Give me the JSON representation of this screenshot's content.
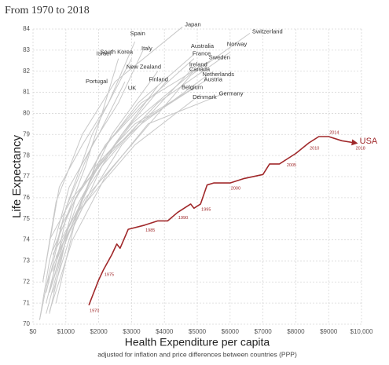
{
  "chart_data": {
    "type": "line",
    "title": "From 1970 to 2018",
    "y_label": "Life Expectancy",
    "x_label": "Health Expenditure per capita",
    "x_sublabel": "adjusted for inflation and price differences between countries (PPP)",
    "xlim": [
      0,
      10000
    ],
    "ylim": [
      70,
      84
    ],
    "xticks": [
      {
        "value": 0,
        "label": "$0"
      },
      {
        "value": 1000,
        "label": "$1000"
      },
      {
        "value": 2000,
        "label": "$2000"
      },
      {
        "value": 3000,
        "label": "$3000"
      },
      {
        "value": 4000,
        "label": "$4000"
      },
      {
        "value": 5000,
        "label": "$5000"
      },
      {
        "value": 6000,
        "label": "$6000"
      },
      {
        "value": 7000,
        "label": "$7000"
      },
      {
        "value": 8000,
        "label": "$8000"
      },
      {
        "value": 9000,
        "label": "$9000"
      },
      {
        "value": 10000,
        "label": "$10,000"
      }
    ],
    "yticks": [
      70,
      71,
      72,
      73,
      74,
      75,
      76,
      77,
      78,
      79,
      80,
      81,
      82,
      83,
      84
    ],
    "grid": true,
    "series": [
      {
        "name": "Japan",
        "color": "#c8c8c8",
        "x": [
          300,
          700,
          1500,
          2500,
          4550
        ],
        "values": [
          72.0,
          75.8,
          79.0,
          81.5,
          84.1
        ]
      },
      {
        "name": "Switzerland",
        "color": "#c8c8c8",
        "x": [
          700,
          1600,
          3000,
          4800,
          6600
        ],
        "values": [
          73.2,
          76.0,
          78.5,
          81.8,
          83.8
        ]
      },
      {
        "name": "Spain",
        "color": "#c8c8c8",
        "x": [
          300,
          800,
          1500,
          2300,
          3100
        ],
        "values": [
          72.0,
          76.5,
          78.5,
          80.5,
          83.4
        ]
      },
      {
        "name": "Italy",
        "color": "#c8c8c8",
        "x": [
          400,
          1000,
          1800,
          2600,
          3350
        ],
        "values": [
          71.5,
          75.5,
          78.5,
          80.5,
          83.0
        ]
      },
      {
        "name": "Israel",
        "color": "#c8c8c8",
        "x": [
          500,
          1000,
          1600,
          2100,
          2600
        ],
        "values": [
          71.5,
          75.0,
          77.5,
          80.0,
          82.6
        ]
      },
      {
        "name": "South Korea",
        "color": "#c8c8c8",
        "x": [
          200,
          500,
          1000,
          1800,
          3000
        ],
        "values": [
          70.2,
          72.5,
          75.5,
          79.0,
          82.6
        ]
      },
      {
        "name": "Australia",
        "color": "#c8c8c8",
        "x": [
          700,
          1300,
          2000,
          3200,
          4900
        ],
        "values": [
          71.0,
          75.0,
          78.0,
          80.5,
          82.8
        ]
      },
      {
        "name": "France",
        "color": "#c8c8c8",
        "x": [
          600,
          1300,
          2200,
          3400,
          4900
        ],
        "values": [
          72.0,
          76.0,
          78.5,
          80.5,
          82.6
        ]
      },
      {
        "name": "Norway",
        "color": "#c8c8c8",
        "x": [
          500,
          1200,
          2300,
          3800,
          6000
        ],
        "values": [
          74.0,
          76.0,
          78.0,
          80.5,
          82.9
        ]
      },
      {
        "name": "Sweden",
        "color": "#c8c8c8",
        "x": [
          800,
          1500,
          2200,
          3300,
          5400
        ],
        "values": [
          74.5,
          76.5,
          78.5,
          80.5,
          82.5
        ]
      },
      {
        "name": "Ireland",
        "color": "#c8c8c8",
        "x": [
          400,
          800,
          1500,
          2700,
          4900
        ],
        "values": [
          71.0,
          73.5,
          75.5,
          78.5,
          82.2
        ]
      },
      {
        "name": "Canada",
        "color": "#c8c8c8",
        "x": [
          600,
          1300,
          2000,
          3000,
          4900
        ],
        "values": [
          72.5,
          75.5,
          77.5,
          79.5,
          82.0
        ]
      },
      {
        "name": "New Zealand",
        "color": "#c8c8c8",
        "x": [
          500,
          900,
          1500,
          2400,
          3800
        ],
        "values": [
          71.5,
          73.5,
          76.0,
          79.0,
          82.0
        ]
      },
      {
        "name": "Netherlands",
        "color": "#c8c8c8",
        "x": [
          600,
          1300,
          2200,
          3300,
          5300
        ],
        "values": [
          73.5,
          76.0,
          78.0,
          79.5,
          81.8
        ]
      },
      {
        "name": "Finland",
        "color": "#c8c8c8",
        "x": [
          400,
          1000,
          1800,
          2700,
          4100
        ],
        "values": [
          70.5,
          74.0,
          77.0,
          79.0,
          81.6
        ]
      },
      {
        "name": "Austria",
        "color": "#c8c8c8",
        "x": [
          500,
          1000,
          1900,
          3100,
          5300
        ],
        "values": [
          70.5,
          74.0,
          77.5,
          79.5,
          81.6
        ]
      },
      {
        "name": "Portugal",
        "color": "#c8c8c8",
        "x": [
          200,
          500,
          1100,
          2000,
          2800
        ],
        "values": [
          70.2,
          73.0,
          76.5,
          79.0,
          81.5
        ]
      },
      {
        "name": "Belgium",
        "color": "#c8c8c8",
        "x": [
          600,
          1200,
          2100,
          3200,
          5000
        ],
        "values": [
          71.5,
          74.5,
          77.5,
          79.5,
          81.3
        ]
      },
      {
        "name": "UK",
        "color": "#c8c8c8",
        "x": [
          400,
          900,
          1700,
          2700,
          3800
        ],
        "values": [
          71.8,
          74.0,
          76.5,
          79.0,
          81.3
        ]
      },
      {
        "name": "Germany",
        "color": "#c8c8c8",
        "x": [
          500,
          1200,
          2200,
          3500,
          5900
        ],
        "values": [
          70.6,
          74.0,
          77.0,
          79.5,
          81.0
        ]
      },
      {
        "name": "Denmark",
        "color": "#c8c8c8",
        "x": [
          600,
          1200,
          2000,
          3100,
          5100
        ],
        "values": [
          73.3,
          75.0,
          76.5,
          78.5,
          80.9
        ]
      },
      {
        "name": "USA",
        "color": "#a0282a",
        "x": [
          1700,
          1800,
          2000,
          2150,
          2400,
          2550,
          2650,
          2900,
          3400,
          3800,
          4100,
          4400,
          4800,
          4900,
          5100,
          5300,
          5500,
          6000,
          6400,
          7000,
          7200,
          7500,
          7700,
          8000,
          8400,
          8700,
          9000,
          9400,
          9800
        ],
        "values": [
          70.9,
          71.3,
          72.1,
          72.6,
          73.3,
          73.8,
          73.6,
          74.5,
          74.7,
          74.9,
          74.9,
          75.3,
          75.7,
          75.5,
          75.7,
          76.6,
          76.7,
          76.7,
          76.9,
          77.1,
          77.6,
          77.6,
          77.8,
          78.1,
          78.6,
          78.9,
          78.9,
          78.7,
          78.6
        ],
        "point_labels": [
          "1970",
          null,
          null,
          "1975",
          null,
          null,
          null,
          null,
          "1985",
          null,
          null,
          "1990",
          null,
          null,
          "1995",
          null,
          null,
          "2000",
          null,
          null,
          null,
          null,
          "2005",
          null,
          "2010",
          null,
          "2014",
          null,
          "2018"
        ]
      }
    ]
  }
}
